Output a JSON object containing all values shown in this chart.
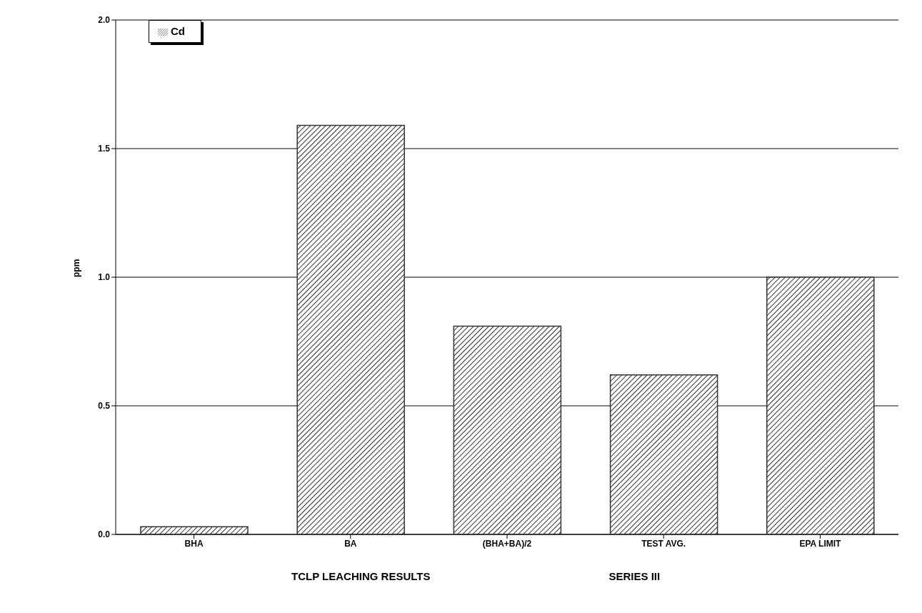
{
  "chart_data": {
    "type": "bar",
    "categories": [
      "BHA",
      "BA",
      "(BHA+BA)/2",
      "TEST AVG.",
      "EPA LIMIT"
    ],
    "series": [
      {
        "name": "Cd",
        "color": "#333333",
        "values": [
          0.03,
          1.59,
          0.81,
          0.62,
          1.0
        ]
      }
    ],
    "ylabel": "ppm",
    "xlabel": "TCLP LEACHING RESULTS",
    "annotations": [
      "SERIES III"
    ],
    "ylim": [
      0,
      2
    ],
    "yticks": [
      {
        "value": 0,
        "label": "0.0"
      },
      {
        "value": 0.5,
        "label": "0.5"
      },
      {
        "value": 1,
        "label": "1.0"
      },
      {
        "value": 1.5,
        "label": "1.5"
      },
      {
        "value": 2,
        "label": "2.0"
      }
    ],
    "grid": "y",
    "legend": "top left"
  }
}
